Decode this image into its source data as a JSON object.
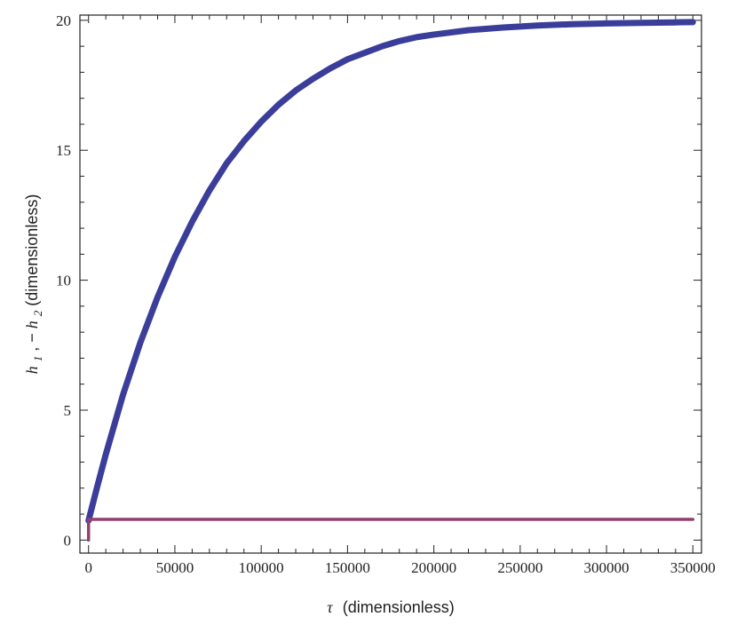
{
  "chart_data": {
    "type": "line",
    "title": "",
    "xlabel_symbol": "τ",
    "xlabel_text": "(dimensionless)",
    "ylabel_parts": [
      "h",
      "1",
      ", −",
      "h",
      "2",
      " (dimensionless)"
    ],
    "xlim": [
      -5000,
      355000
    ],
    "ylim": [
      -0.5,
      20.2
    ],
    "xticks": [
      0,
      50000,
      100000,
      150000,
      200000,
      250000,
      300000,
      350000
    ],
    "yticks": [
      0,
      5,
      10,
      15,
      20
    ],
    "grid": false,
    "series": [
      {
        "color": "#3b3d9a",
        "x": [
          0,
          5000,
          10000,
          20000,
          30000,
          40000,
          50000,
          60000,
          70000,
          80000,
          90000,
          100000,
          110000,
          120000,
          130000,
          140000,
          150000,
          160000,
          170000,
          180000,
          190000,
          200000,
          220000,
          240000,
          260000,
          280000,
          300000,
          320000,
          340000,
          350000
        ],
        "values": [
          0.75,
          2.05,
          3.3,
          5.6,
          7.6,
          9.35,
          10.9,
          12.25,
          13.45,
          14.5,
          15.35,
          16.1,
          16.75,
          17.3,
          17.75,
          18.15,
          18.5,
          18.75,
          19.0,
          19.2,
          19.35,
          19.45,
          19.62,
          19.72,
          19.8,
          19.85,
          19.88,
          19.9,
          19.92,
          19.93
        ]
      },
      {
        "color": "#93406f",
        "x": [
          0,
          0,
          0,
          350000
        ],
        "values": [
          0.0,
          0.8,
          0.8,
          0.8
        ]
      }
    ]
  }
}
